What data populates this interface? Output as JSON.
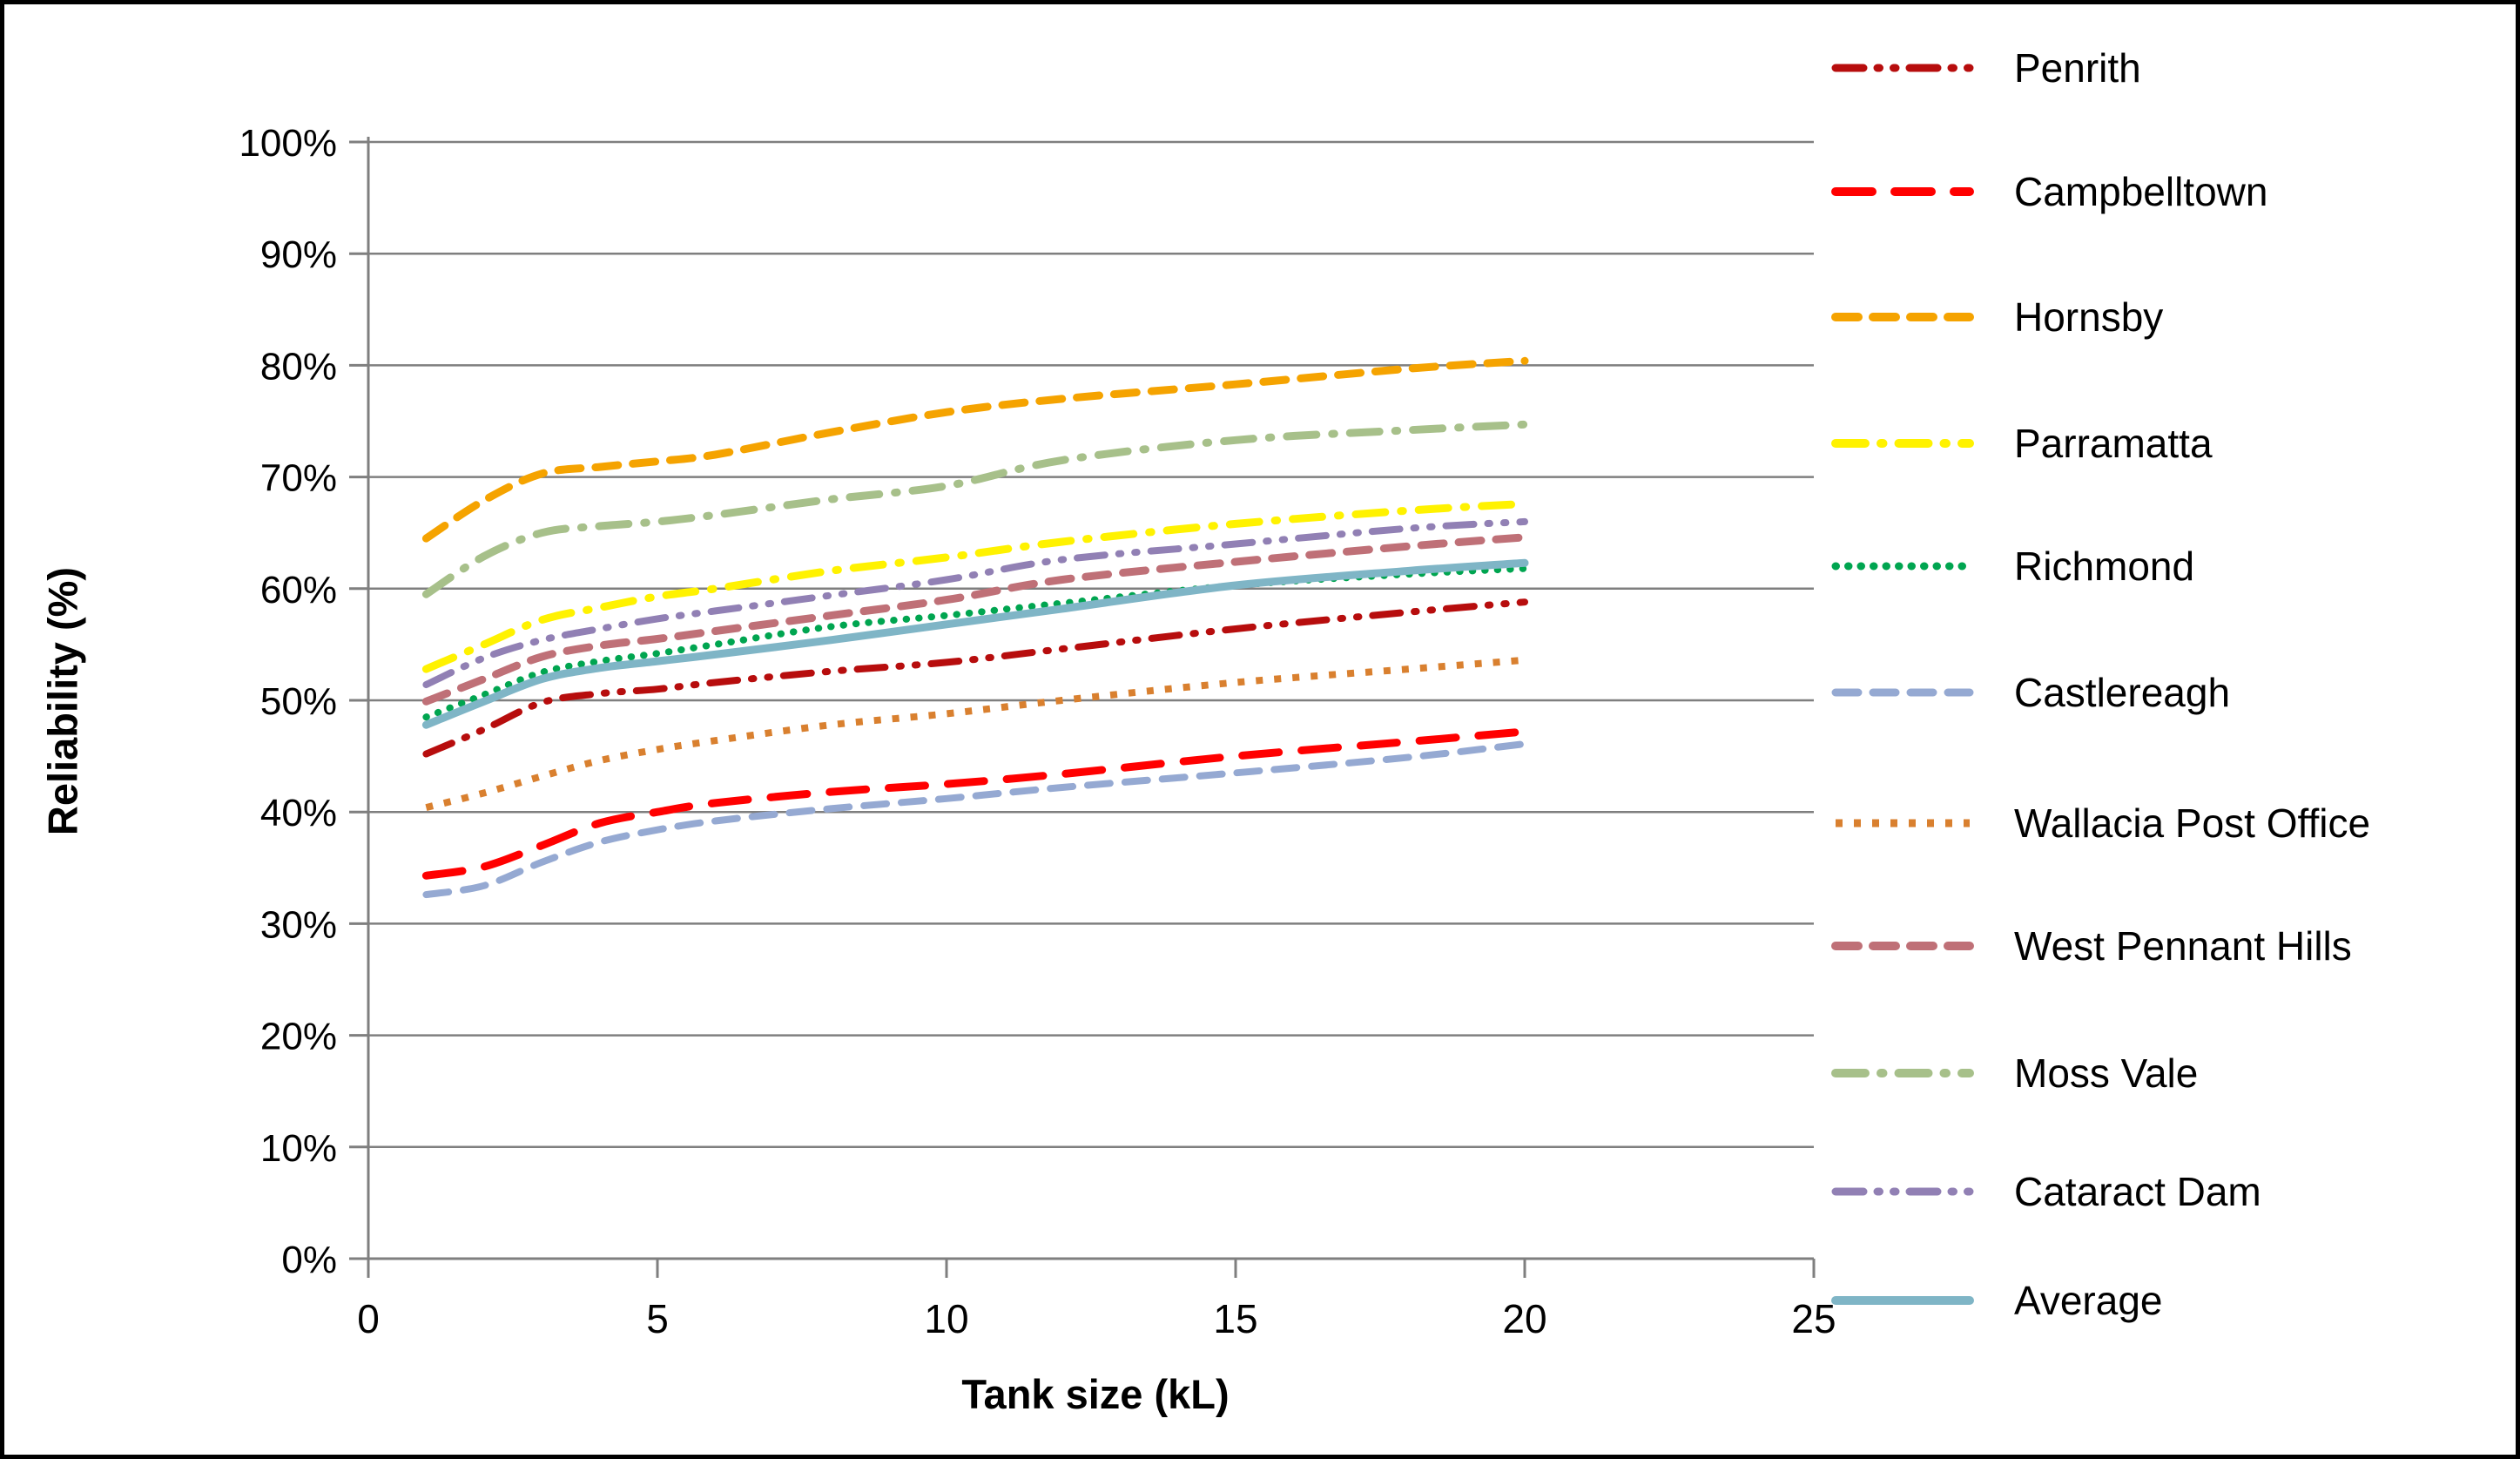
{
  "chart_data": {
    "type": "line",
    "title": "",
    "xlabel": "Tank size (kL)",
    "ylabel": "Reliability (%)",
    "xlim": [
      0,
      25
    ],
    "ylim": [
      0,
      100
    ],
    "x_ticks": [
      0,
      5,
      10,
      15,
      20,
      25
    ],
    "y_ticks": [
      "0%",
      "10%",
      "20%",
      "30%",
      "40%",
      "50%",
      "60%",
      "70%",
      "80%",
      "90%",
      "100%"
    ],
    "grid": "horizontal-only",
    "legend_position": "right",
    "x": [
      1,
      2,
      3,
      4,
      5,
      6,
      8,
      10,
      12,
      15,
      18,
      20
    ],
    "series": [
      {
        "name": "Penrith",
        "color": "#B70D0D",
        "style": "long-dash-dot-dot",
        "width": 8,
        "values": [
          45.2,
          47.4,
          49.8,
          50.6,
          51.0,
          51.6,
          52.6,
          53.4,
          54.6,
          56.4,
          57.9,
          58.8
        ]
      },
      {
        "name": "Campbelltown",
        "color": "#FF0000",
        "style": "long-dash",
        "width": 9,
        "values": [
          34.3,
          35.1,
          37.0,
          39.0,
          40.0,
          40.8,
          41.8,
          42.5,
          43.4,
          45.0,
          46.3,
          47.2
        ]
      },
      {
        "name": "Hornsby",
        "color": "#F5A300",
        "style": "dash",
        "width": 9,
        "values": [
          64.5,
          67.9,
          70.3,
          70.9,
          71.4,
          72.0,
          74.0,
          75.8,
          77.0,
          78.3,
          79.7,
          80.4
        ]
      },
      {
        "name": "Parramatta",
        "color": "#FFF200",
        "style": "long-dash-dot",
        "width": 9,
        "values": [
          52.8,
          55.0,
          57.2,
          58.3,
          59.3,
          60.0,
          61.6,
          62.8,
          64.2,
          65.8,
          67.0,
          67.6
        ]
      },
      {
        "name": "Richmond",
        "color": "#00A550",
        "style": "round-dot",
        "width": 8,
        "values": [
          48.5,
          50.5,
          52.5,
          53.5,
          54.2,
          55.0,
          56.6,
          57.6,
          58.7,
          60.3,
          61.3,
          61.8
        ]
      },
      {
        "name": "Castlereagh",
        "color": "#95A9D2",
        "style": "dash",
        "width": 8,
        "values": [
          32.6,
          33.4,
          35.5,
          37.3,
          38.4,
          39.2,
          40.3,
          41.2,
          42.2,
          43.5,
          44.9,
          46.1
        ]
      },
      {
        "name": "Wallacia Post Office",
        "color": "#D9802F",
        "style": "square-dot",
        "width": 8,
        "values": [
          40.4,
          41.7,
          43.2,
          44.6,
          45.6,
          46.4,
          47.8,
          48.8,
          50.0,
          51.6,
          52.8,
          53.6
        ]
      },
      {
        "name": "West Pennant Hills",
        "color": "#BF7077",
        "style": "dash",
        "width": 9,
        "values": [
          49.9,
          51.9,
          53.9,
          54.9,
          55.5,
          56.2,
          57.6,
          59.0,
          60.8,
          62.4,
          63.8,
          64.6
        ]
      },
      {
        "name": "Moss Vale",
        "color": "#A7C08A",
        "style": "long-dash-dot",
        "width": 9,
        "values": [
          59.5,
          62.9,
          65.0,
          65.6,
          66.0,
          66.6,
          68.0,
          69.2,
          71.5,
          73.3,
          74.2,
          74.7
        ]
      },
      {
        "name": "Cataract Dam",
        "color": "#9180B4",
        "style": "long-dash-dot-dot",
        "width": 8,
        "values": [
          51.4,
          53.8,
          55.4,
          56.4,
          57.3,
          58.0,
          59.4,
          60.8,
          62.6,
          64.0,
          65.4,
          66.0
        ]
      },
      {
        "name": "Average",
        "color": "#7FB5C6",
        "style": "solid",
        "width": 9,
        "values": [
          47.8,
          49.9,
          51.9,
          52.9,
          53.5,
          54.1,
          55.4,
          56.8,
          58.2,
          60.3,
          61.6,
          62.3
        ]
      }
    ]
  },
  "colors": {
    "background": "#FFFFFF",
    "border": "#000000",
    "axis": "#7F7F7F",
    "grid": "#7F7F7F",
    "text": "#000000"
  }
}
